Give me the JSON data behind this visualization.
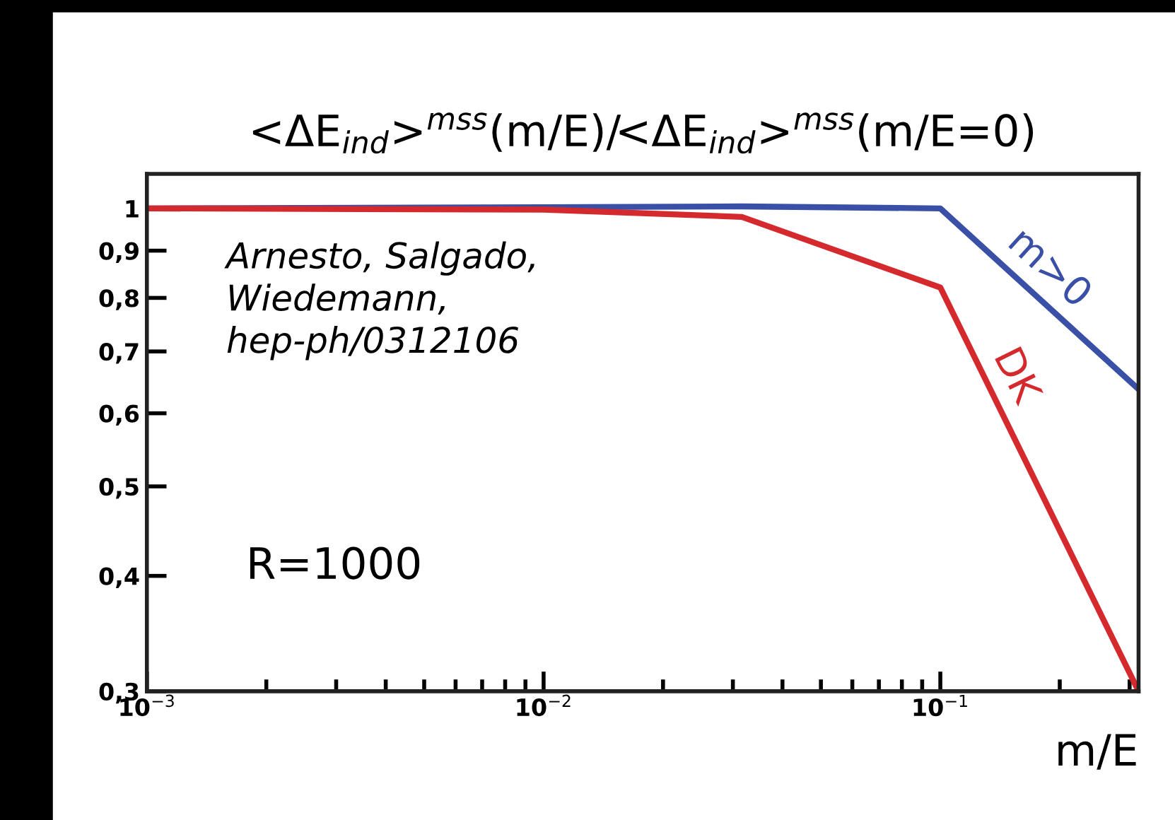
{
  "chart_data": {
    "type": "line",
    "title": "<ΔE$_{ind}$>$^{mss}$(m/E)/<ΔE$_{ind}$>$^{mss}$(m/E=0)",
    "xlabel": "m/E",
    "series": [
      {
        "name": "m>0",
        "color": "#3a4fa6",
        "x": [
          0.001,
          0.01,
          0.0316,
          0.1,
          0.316
        ],
        "values": [
          1.0,
          1.003,
          1.005,
          1.0,
          0.637
        ]
      },
      {
        "name": "DK",
        "color": "#d42a2e",
        "x": [
          0.001,
          0.01,
          0.0316,
          0.1,
          0.316
        ],
        "values": [
          1.0,
          0.997,
          0.979,
          0.821,
          0.3
        ]
      }
    ],
    "log": "xy",
    "xlim": [
      0.001,
      0.316
    ],
    "ylim": [
      0.3,
      1.09
    ],
    "xticks": [
      {
        "value": 0.001,
        "label": "10$^{−3}$"
      },
      {
        "value": 0.01,
        "label": "10$^{−2}$"
      },
      {
        "value": 0.1,
        "label": "10$^{−1}$"
      }
    ],
    "yticks": [
      {
        "value": 0.3,
        "label": "0,3"
      },
      {
        "value": 0.4,
        "label": "0,4"
      },
      {
        "value": 0.5,
        "label": "0,5"
      },
      {
        "value": 0.6,
        "label": "0,6"
      },
      {
        "value": 0.7,
        "label": "0,7"
      },
      {
        "value": 0.8,
        "label": "0,8"
      },
      {
        "value": 0.9,
        "label": "0,9"
      },
      {
        "value": 1,
        "label": "1"
      }
    ],
    "annotations": [
      "Arnesto, Salgado,\nWiedemann,\nhep-ph/0312106",
      "R=1000"
    ],
    "grid": false,
    "legend": false,
    "marker": "none",
    "line_style": "solid"
  }
}
